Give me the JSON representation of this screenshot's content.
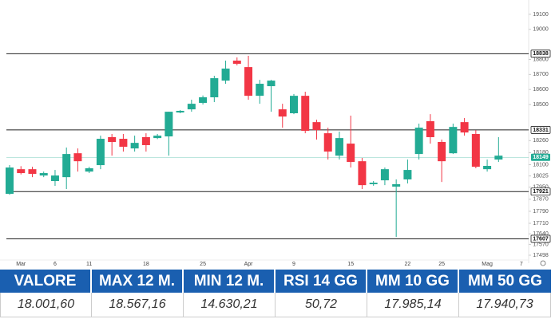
{
  "chart_data": {
    "type": "candlestick",
    "categories": [
      null,
      "Mar",
      null,
      null,
      "6",
      null,
      null,
      "11",
      null,
      null,
      null,
      null,
      "18",
      null,
      null,
      null,
      null,
      "25",
      null,
      null,
      null,
      "Apr",
      null,
      null,
      null,
      "9",
      null,
      null,
      null,
      null,
      "15",
      null,
      null,
      null,
      null,
      "22",
      null,
      null,
      "25",
      null,
      null,
      null,
      "Mag",
      null,
      null,
      "7"
    ],
    "series": [
      {
        "up_color": "#22ab94",
        "down_color": "#f23645",
        "open": [
          17906,
          18070,
          18070,
          18028,
          17991,
          18017,
          18176,
          18054,
          18097,
          18283,
          18272,
          18208,
          18283,
          18277,
          18288,
          18447,
          18468,
          18511,
          18548,
          18659,
          18792,
          18749,
          18558,
          18622,
          18468,
          18442,
          18558,
          18383,
          18309,
          18160,
          18240,
          18123,
          17970,
          17996,
          17954,
          18002,
          18171,
          18389,
          18251,
          18176,
          18383,
          18304,
          18070,
          18134,
          null,
          null
        ],
        "high": [
          18097,
          18090,
          18086,
          18054,
          18065,
          18214,
          18208,
          18086,
          18293,
          18304,
          18304,
          18293,
          18309,
          18304,
          18452,
          18463,
          18532,
          18560,
          18691,
          18792,
          18813,
          18824,
          18664,
          18664,
          18505,
          18570,
          18585,
          18399,
          18346,
          18320,
          18426,
          18145,
          17991,
          18081,
          18002,
          18134,
          18373,
          18436,
          18267,
          18373,
          18410,
          18330,
          18134,
          18283,
          null,
          null
        ],
        "low": [
          17900,
          18035,
          18017,
          18017,
          17959,
          17938,
          18054,
          18044,
          18070,
          18160,
          18187,
          18187,
          18187,
          18270,
          18160,
          18442,
          18452,
          18500,
          18516,
          18638,
          18760,
          18532,
          18505,
          18452,
          18346,
          18436,
          18309,
          18267,
          18134,
          18134,
          18081,
          17938,
          17960,
          17964,
          17619,
          17975,
          18134,
          18240,
          17985,
          18171,
          18293,
          18076,
          18054,
          18118,
          null,
          null
        ],
        "close": [
          18081,
          18044,
          18039,
          18044,
          18028,
          18171,
          18123,
          18076,
          18272,
          18251,
          18219,
          18245,
          18230,
          18293,
          18452,
          18458,
          18505,
          18548,
          18675,
          18739,
          18771,
          18558,
          18638,
          18659,
          18420,
          18558,
          18325,
          18330,
          18187,
          18277,
          18118,
          17964,
          17980,
          18070,
          17970,
          18065,
          18346,
          18283,
          18123,
          18351,
          18314,
          18086,
          18092,
          18160,
          null,
          null
        ]
      }
    ],
    "ylim": [
      17445,
      19195
    ],
    "yticks": [
      17498,
      17570,
      17640,
      17710,
      17790,
      17870,
      17950,
      18025,
      18100,
      18180,
      18260,
      18500,
      18600,
      18700,
      18800,
      19000,
      19100
    ],
    "levels": [
      18838,
      18331,
      17921,
      17607
    ],
    "last_price": 18149,
    "last_price_color": "#22ab94"
  },
  "table": {
    "headers": [
      "VALORE",
      "MAX 12 M.",
      "MIN 12 M.",
      "RSI 14 GG",
      "MM 10 GG",
      "MM 50 GG"
    ],
    "rows": [
      [
        "18.001,60",
        "18.567,16",
        "14.630,21",
        "50,72",
        "17.985,14",
        "17.940,73"
      ]
    ]
  }
}
